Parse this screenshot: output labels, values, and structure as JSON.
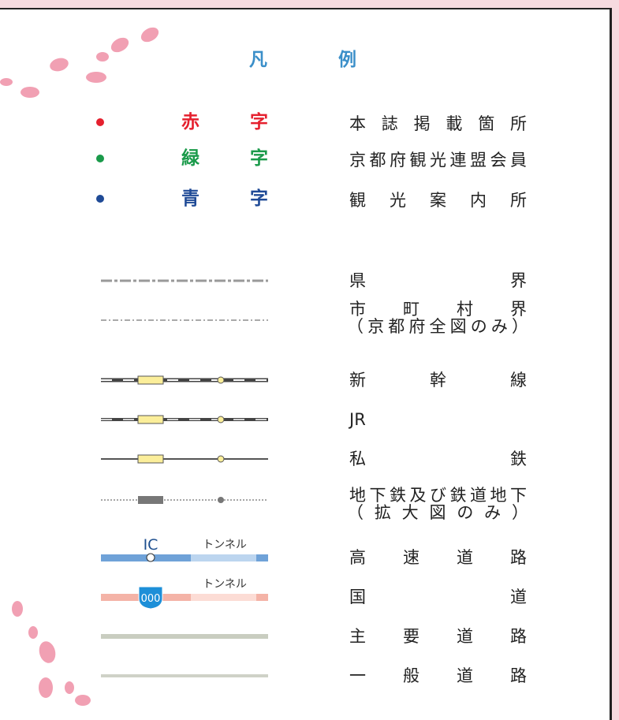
{
  "title": "凡例",
  "color_legend": [
    {
      "label": "赤字",
      "description": "本誌掲載箇所",
      "color": "#e5202e"
    },
    {
      "label": "緑字",
      "description": "京都府観光連盟会員",
      "color": "#1a9a4a"
    },
    {
      "label": "青字",
      "description": "観光案内所",
      "color": "#1f4a96"
    }
  ],
  "line_legend": [
    {
      "label": "県界"
    },
    {
      "label": "市町村界",
      "note": "（京都府全図のみ）"
    },
    {
      "label": "新幹線"
    },
    {
      "label": "JR"
    },
    {
      "label": "私鉄"
    },
    {
      "label": "地下鉄及び鉄道地下",
      "note": "（拡大図のみ）"
    },
    {
      "label": "高速道路",
      "symbol_labels": [
        "IC",
        "トンネル"
      ]
    },
    {
      "label": "国道",
      "symbol_labels": [
        "000",
        "トンネル"
      ]
    },
    {
      "label": "主要道路"
    },
    {
      "label": "一般道路"
    }
  ]
}
